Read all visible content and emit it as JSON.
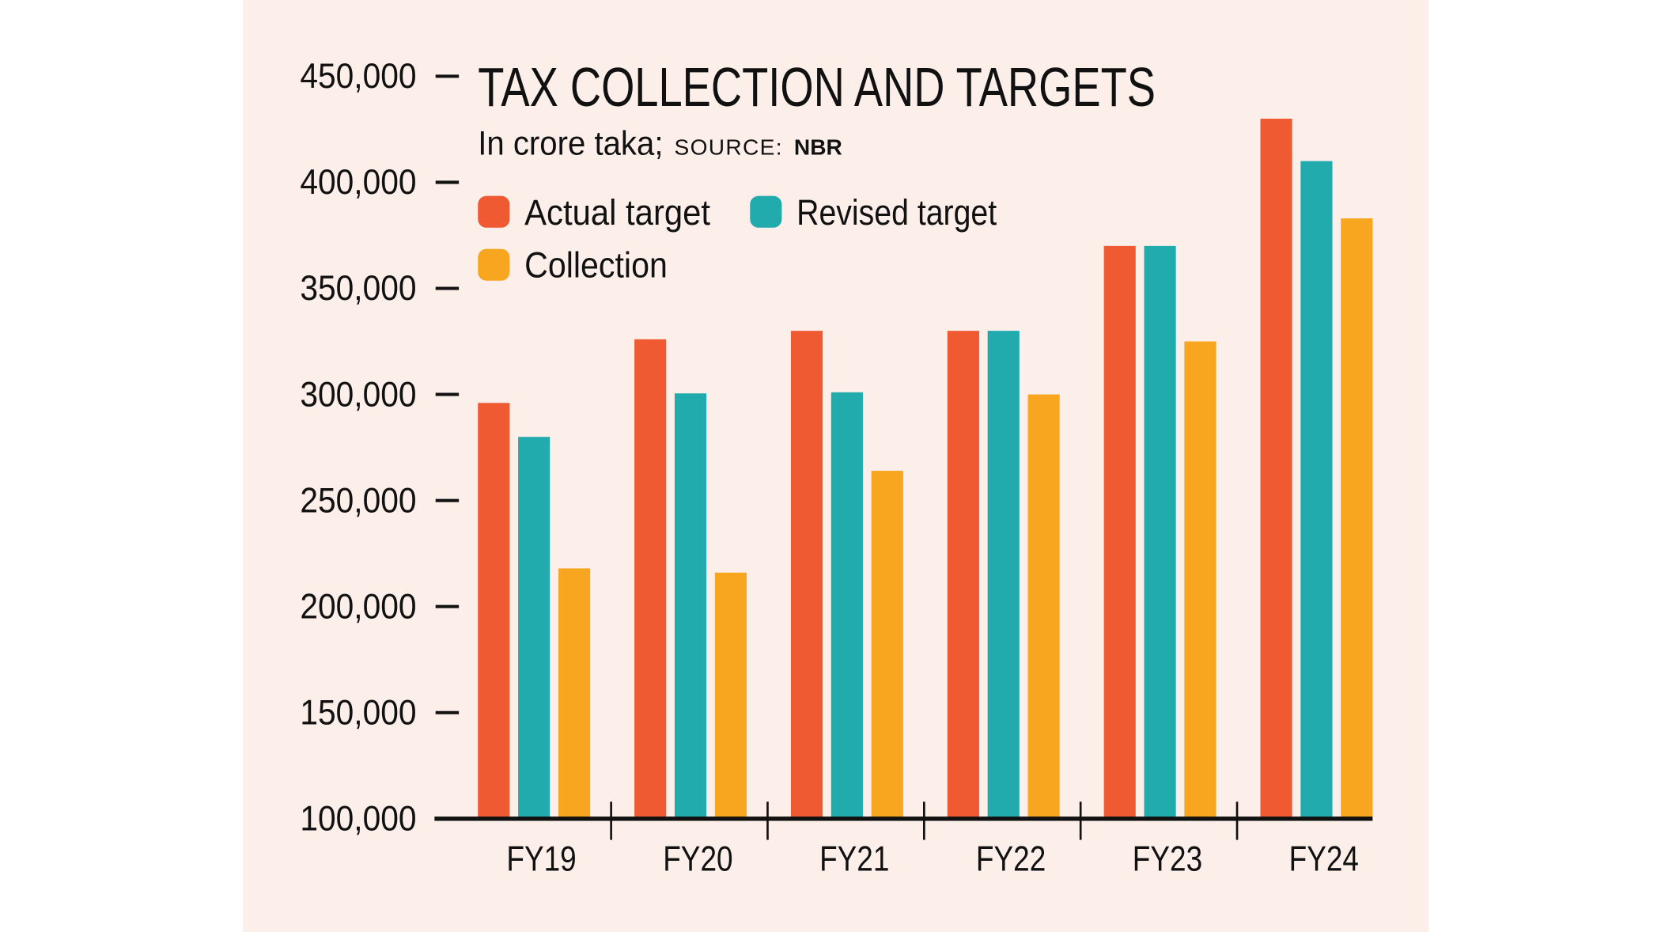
{
  "chart_data": {
    "type": "bar",
    "title": "TAX COLLECTION AND TARGETS",
    "subtitle": "In crore taka;",
    "source_label": "SOURCE:",
    "source": "NBR",
    "categories": [
      "FY19",
      "FY20",
      "FY21",
      "FY22",
      "FY23",
      "FY24"
    ],
    "series": [
      {
        "name": "Actual target",
        "color": "#f05a33",
        "values": [
          296000,
          326000,
          330000,
          330000,
          370000,
          430000
        ]
      },
      {
        "name": "Revised target",
        "color": "#22abad",
        "values": [
          280000,
          300500,
          301000,
          330000,
          370000,
          410000
        ]
      },
      {
        "name": "Collection",
        "color": "#f8a61f",
        "values": [
          218000,
          216000,
          264000,
          300000,
          325000,
          383000
        ]
      }
    ],
    "ylim": [
      100000,
      450000
    ],
    "yticks": [
      {
        "value": 100000,
        "label": "100,000"
      },
      {
        "value": 150000,
        "label": "150,000"
      },
      {
        "value": 200000,
        "label": "200,000"
      },
      {
        "value": 250000,
        "label": "250,000"
      },
      {
        "value": 300000,
        "label": "300,000"
      },
      {
        "value": 350000,
        "label": "350,000"
      },
      {
        "value": 400000,
        "label": "400,000"
      },
      {
        "value": 450000,
        "label": "450,000"
      }
    ],
    "grid": false
  }
}
